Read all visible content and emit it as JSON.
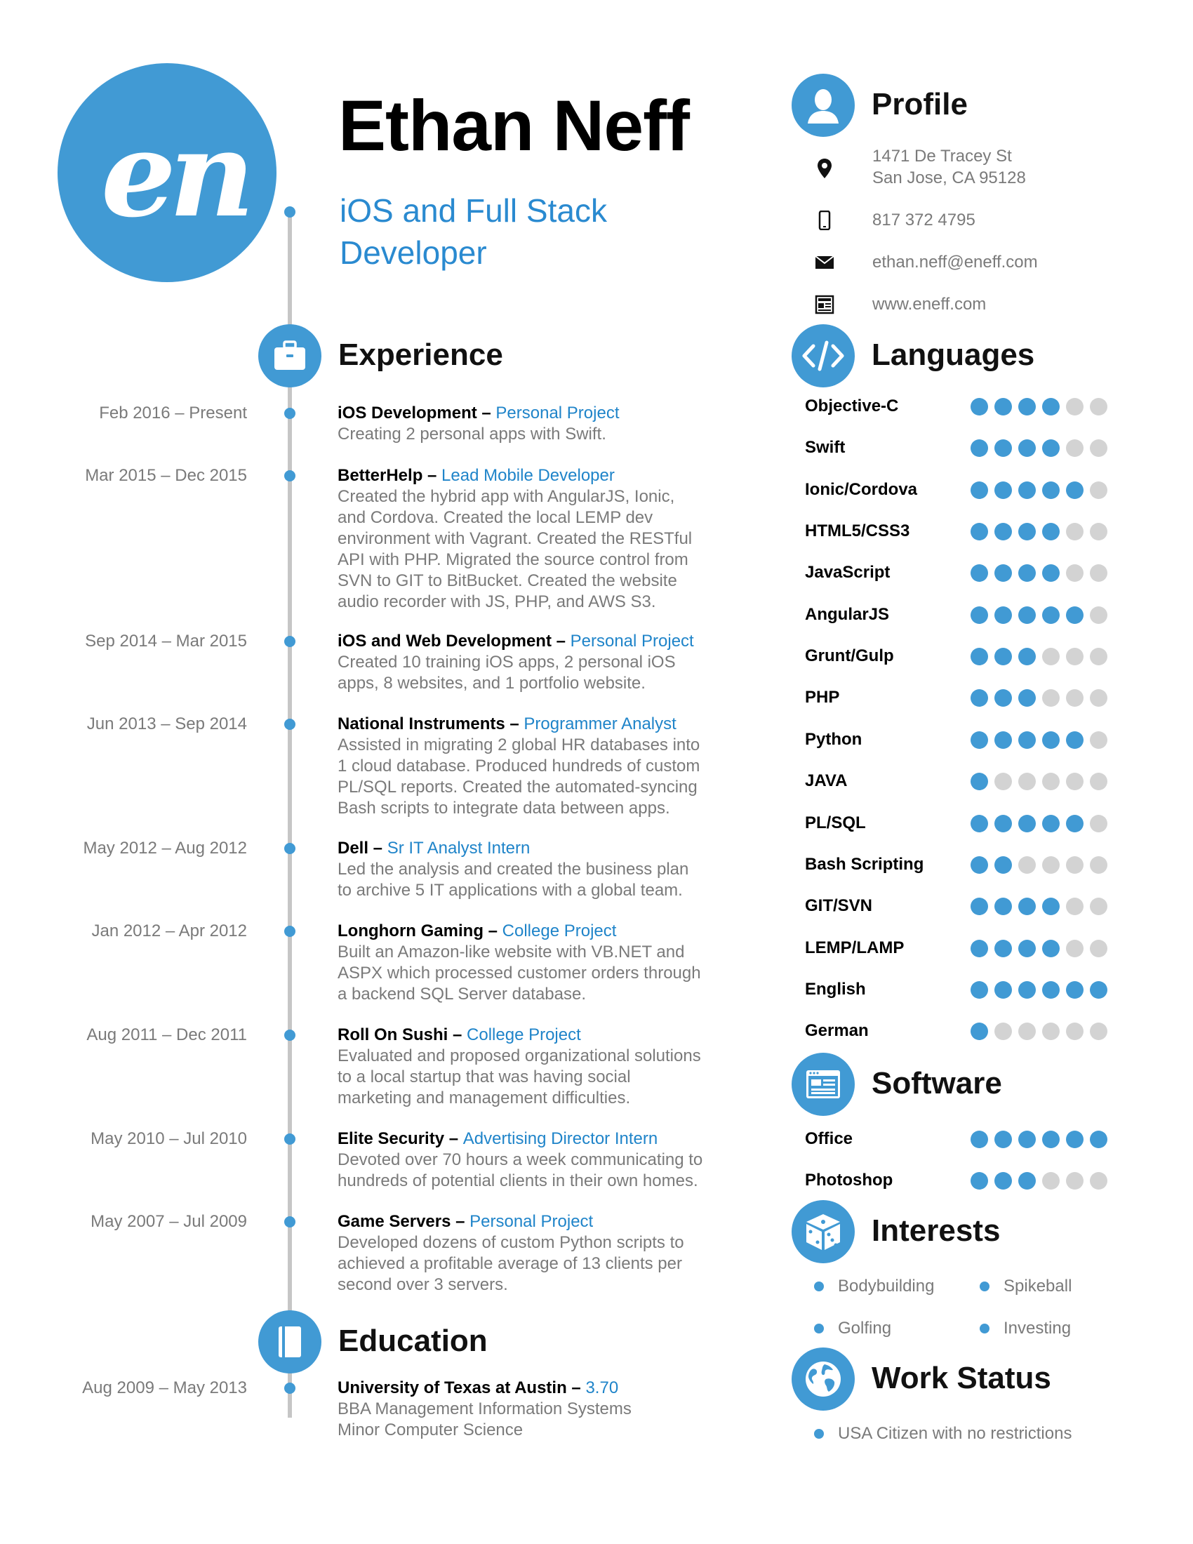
{
  "header": {
    "monogram": "en",
    "name": "Ethan Neff",
    "title_line1": "iOS and Full Stack",
    "title_line2": "Developer"
  },
  "colors": {
    "accent": "#419ad4",
    "role": "#1f84c9",
    "muted": "#7a7a7a",
    "dot_off": "#d3d3d3",
    "timeline": "#c6c6c6"
  },
  "experience": {
    "title": "Experience",
    "icon": "briefcase-icon",
    "items": [
      {
        "date": "Feb 2016 – Present",
        "company": "iOS Development",
        "sep": " – ",
        "role": "Personal Project",
        "lines": [
          "Creating 2 personal apps with Swift."
        ]
      },
      {
        "date": "Mar 2015 – Dec 2015",
        "company": "BetterHelp",
        "sep": " – ",
        "role": "Lead Mobile Developer",
        "lines": [
          "Created the hybrid app with AngularJS, Ionic,",
          "and Cordova. Created the local LEMP dev",
          "environment with Vagrant. Created the RESTful",
          "API with PHP. Migrated the source control from",
          "SVN to GIT to BitBucket. Created the website",
          "audio recorder with JS, PHP, and AWS S3."
        ]
      },
      {
        "date": "Sep 2014 – Mar 2015",
        "company": "iOS and Web Development",
        "sep": " – ",
        "role": "Personal Project",
        "lines": [
          "Created 10 training iOS apps, 2 personal iOS",
          "apps, 8 websites, and 1 portfolio website."
        ]
      },
      {
        "date": "Jun 2013 – Sep 2014",
        "company": "National Instruments",
        "sep": " – ",
        "role": "Programmer Analyst",
        "lines": [
          "Assisted in migrating 2 global HR databases into",
          "1 cloud database. Produced hundreds of custom",
          "PL/SQL reports. Created the automated-syncing",
          "Bash scripts to integrate data between apps."
        ]
      },
      {
        "date": "May 2012 – Aug 2012",
        "company": "Dell",
        "sep": " – ",
        "role": "Sr IT Analyst Intern",
        "lines": [
          "Led the analysis and created the business plan",
          "to archive 5 IT applications with a global team."
        ]
      },
      {
        "date": "Jan 2012 – Apr 2012",
        "company": "Longhorn Gaming",
        "sep": " – ",
        "role": "College Project",
        "lines": [
          "Built an Amazon-like website with VB.NET and",
          "ASPX which processed customer orders through",
          "a backend SQL Server database."
        ]
      },
      {
        "date": "Aug 2011 – Dec 2011",
        "company": "Roll On Sushi",
        "sep": " – ",
        "role": "College Project",
        "lines": [
          "Evaluated and proposed organizational solutions",
          "to a local startup that was having social",
          "marketing and management difficulties."
        ]
      },
      {
        "date": "May 2010 – Jul 2010",
        "company": "Elite Security",
        "sep": " – ",
        "role": "Advertising Director Intern",
        "lines": [
          "Devoted over 70 hours a week communicating to",
          "hundreds of potential clients in their own homes."
        ]
      },
      {
        "date": "May 2007 – Jul 2009",
        "company": "Game Servers",
        "sep": " – ",
        "role": "Personal Project",
        "lines": [
          "Developed dozens of custom Python scripts to",
          "achieved a profitable average of 13 clients per",
          "second over 3 servers."
        ]
      }
    ]
  },
  "education": {
    "title": "Education",
    "icon": "book-icon",
    "items": [
      {
        "date": "Aug 2009 – May 2013",
        "company": "University of Texas at Austin",
        "sep": " – ",
        "role": "3.70",
        "lines": [
          "BBA Management Information Systems",
          "Minor Computer Science"
        ]
      }
    ]
  },
  "profile": {
    "title": "Profile",
    "icon": "person-icon",
    "address_line1": "1471 De Tracey St",
    "address_line2": "San Jose, CA 95128",
    "phone": "817 372 4795",
    "email": "ethan.neff@eneff.com",
    "website": "www.eneff.com"
  },
  "languages": {
    "title": "Languages",
    "icon": "code-icon",
    "max": 6,
    "items": [
      {
        "name": "Objective-C",
        "level": 4
      },
      {
        "name": "Swift",
        "level": 4
      },
      {
        "name": "Ionic/Cordova",
        "level": 5
      },
      {
        "name": "HTML5/CSS3",
        "level": 4
      },
      {
        "name": "JavaScript",
        "level": 4
      },
      {
        "name": "AngularJS",
        "level": 5
      },
      {
        "name": "Grunt/Gulp",
        "level": 3
      },
      {
        "name": "PHP",
        "level": 3
      },
      {
        "name": "Python",
        "level": 5
      },
      {
        "name": "JAVA",
        "level": 1
      },
      {
        "name": "PL/SQL",
        "level": 5
      },
      {
        "name": "Bash Scripting",
        "level": 2
      },
      {
        "name": "GIT/SVN",
        "level": 4
      },
      {
        "name": "LEMP/LAMP",
        "level": 4
      },
      {
        "name": "English",
        "level": 6
      },
      {
        "name": "German",
        "level": 1
      }
    ]
  },
  "software": {
    "title": "Software",
    "icon": "browser-window-icon",
    "max": 6,
    "items": [
      {
        "name": "Office",
        "level": 6
      },
      {
        "name": "Photoshop",
        "level": 3
      }
    ]
  },
  "interests": {
    "title": "Interests",
    "icon": "dice-icon",
    "items": [
      "Bodybuilding",
      "Spikeball",
      "Golfing",
      "Investing"
    ]
  },
  "work_status": {
    "title": "Work Status",
    "icon": "globe-icon",
    "items": [
      "USA Citizen with no restrictions"
    ]
  }
}
